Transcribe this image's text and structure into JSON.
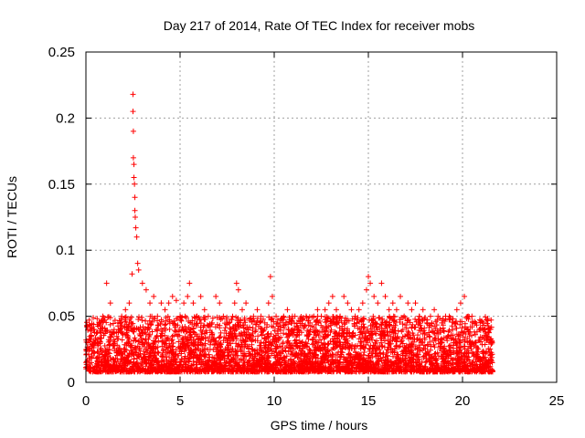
{
  "chart_data": {
    "type": "scatter",
    "title": "Day 217 of 2014, Rate Of TEC Index for receiver mobs",
    "xlabel": "GPS time / hours",
    "ylabel": "ROTI / TECUs",
    "xlim": [
      0,
      25
    ],
    "ylim": [
      0,
      0.25
    ],
    "x_ticks": [
      0,
      5,
      10,
      15,
      20,
      25
    ],
    "x_tick_labels": [
      "0",
      "5",
      "10",
      "15",
      "20",
      "25"
    ],
    "y_ticks": [
      0,
      0.05,
      0.1,
      0.15,
      0.2,
      0.25
    ],
    "y_tick_labels": [
      "0",
      "0.05",
      "0.1",
      "0.15",
      "0.2",
      "0.25"
    ],
    "grid": true,
    "legend": "none",
    "marker": "+",
    "color": "#ff0000",
    "series": [
      {
        "x": [
          0.05,
          0.1,
          0.2,
          0.3,
          0.4,
          0.5,
          0.7,
          0.9,
          1.1,
          1.3,
          1.5,
          1.7,
          1.9,
          2.1,
          2.3,
          2.45,
          2.5,
          2.5,
          2.52,
          2.52,
          2.55,
          2.55,
          2.58,
          2.6,
          2.6,
          2.62,
          2.65,
          2.7,
          2.75,
          2.8,
          3.0,
          3.2,
          3.4,
          3.6,
          3.8,
          4.0,
          4.2,
          4.4,
          4.6,
          4.8,
          5.0,
          5.2,
          5.4,
          5.5,
          5.7,
          5.9,
          6.1,
          6.3,
          6.5,
          6.7,
          6.9,
          7.1,
          7.3,
          7.5,
          7.7,
          7.9,
          8.0,
          8.1,
          8.3,
          8.5,
          8.7,
          8.9,
          9.1,
          9.3,
          9.5,
          9.7,
          9.8,
          9.9,
          10.1,
          10.3,
          10.5,
          10.7,
          10.9,
          11.1,
          11.3,
          11.5,
          11.7,
          11.9,
          12.1,
          12.3,
          12.5,
          12.7,
          12.9,
          13.1,
          13.3,
          13.5,
          13.7,
          13.9,
          14.1,
          14.3,
          14.5,
          14.7,
          14.9,
          15.0,
          15.1,
          15.3,
          15.5,
          15.7,
          15.9,
          16.1,
          16.3,
          16.5,
          16.7,
          16.9,
          17.1,
          17.3,
          17.5,
          17.7,
          17.9,
          18.1,
          18.3,
          18.5,
          18.7,
          18.9,
          19.1,
          19.3,
          19.5,
          19.7,
          19.9,
          20.1,
          20.3,
          20.5,
          20.7,
          20.9,
          21.1,
          21.3,
          21.5
        ],
        "y": [
          0.043,
          0.03,
          0.025,
          0.035,
          0.04,
          0.032,
          0.045,
          0.05,
          0.075,
          0.06,
          0.04,
          0.045,
          0.05,
          0.055,
          0.06,
          0.082,
          0.218,
          0.205,
          0.19,
          0.17,
          0.165,
          0.155,
          0.15,
          0.14,
          0.13,
          0.125,
          0.117,
          0.11,
          0.09,
          0.085,
          0.075,
          0.07,
          0.06,
          0.065,
          0.05,
          0.06,
          0.055,
          0.06,
          0.065,
          0.062,
          0.05,
          0.06,
          0.065,
          0.075,
          0.06,
          0.05,
          0.065,
          0.055,
          0.05,
          0.045,
          0.065,
          0.06,
          0.05,
          0.045,
          0.04,
          0.06,
          0.075,
          0.07,
          0.055,
          0.06,
          0.048,
          0.05,
          0.055,
          0.05,
          0.045,
          0.06,
          0.08,
          0.065,
          0.05,
          0.045,
          0.05,
          0.055,
          0.045,
          0.05,
          0.04,
          0.048,
          0.05,
          0.045,
          0.05,
          0.055,
          0.05,
          0.055,
          0.06,
          0.065,
          0.055,
          0.05,
          0.065,
          0.06,
          0.055,
          0.05,
          0.055,
          0.06,
          0.07,
          0.08,
          0.075,
          0.065,
          0.06,
          0.075,
          0.065,
          0.055,
          0.06,
          0.055,
          0.065,
          0.05,
          0.06,
          0.055,
          0.06,
          0.05,
          0.055,
          0.045,
          0.05,
          0.055,
          0.05,
          0.045,
          0.05,
          0.05,
          0.048,
          0.055,
          0.06,
          0.065,
          0.05,
          0.05,
          0.045,
          0.04,
          0.045,
          0.035,
          0.03
        ]
      }
    ]
  }
}
